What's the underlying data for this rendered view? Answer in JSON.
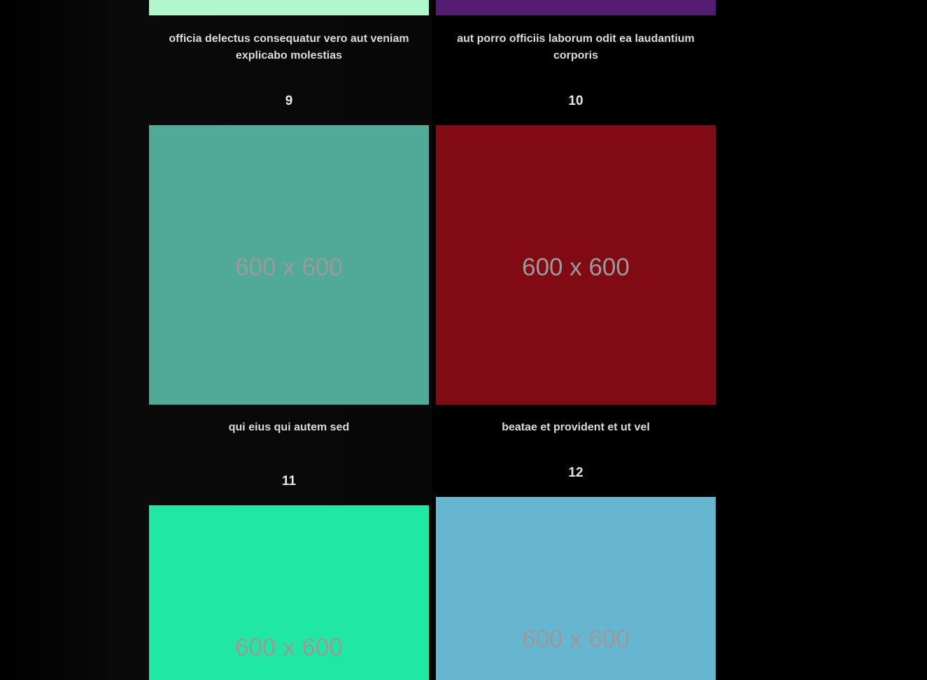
{
  "gallery": {
    "placeholder_text": "600 x 600",
    "cards": [
      {
        "number": "",
        "caption": "officia delectus consequatur vero aut veniam explicabo molestias",
        "color": "#b2f7cb"
      },
      {
        "number": "",
        "caption": "aut porro officiis laborum odit ea laudantium corporis",
        "color": "#541b72"
      },
      {
        "number": "9",
        "caption": "qui eius qui autem sed",
        "color": "#51aa97"
      },
      {
        "number": "10",
        "caption": "beatae et provident et ut vel",
        "color": "#820a15"
      },
      {
        "number": "11",
        "caption": "",
        "color": "#21e7a5"
      },
      {
        "number": "12",
        "caption": "",
        "color": "#66b6d2"
      }
    ]
  }
}
